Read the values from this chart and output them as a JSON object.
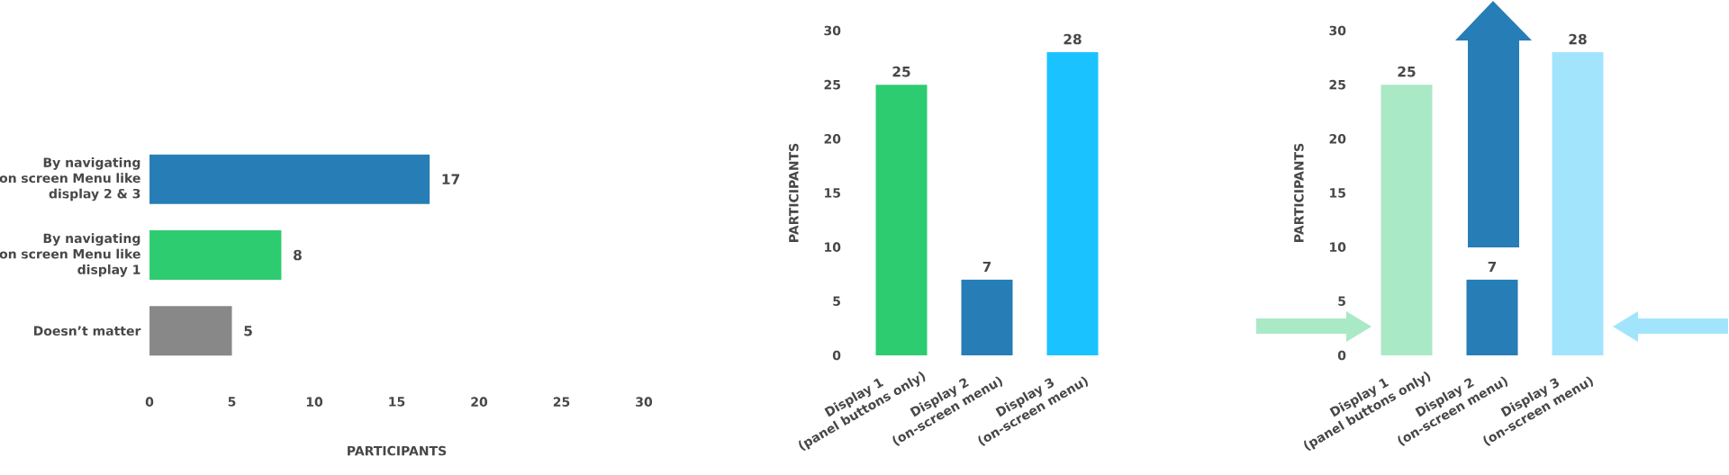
{
  "chart_data": [
    {
      "type": "bar",
      "orientation": "horizontal",
      "categories": [
        "By navigating on screen Menu like display 2 & 3",
        "By navigating on screen Menu like display 1",
        "Doesn’t matter"
      ],
      "values": [
        17,
        8,
        5
      ],
      "colors": [
        "#277db5",
        "#2ecc71",
        "#888888"
      ],
      "xlim": [
        0,
        30
      ],
      "xticks": [
        0,
        5,
        10,
        15,
        20,
        25,
        30
      ],
      "xlabel": "PARTICIPANTS",
      "data_labels": true
    },
    {
      "type": "bar",
      "categories": [
        "Display 1 (panel buttons only)",
        "Display 2 (on-screen menu)",
        "Display 3 (on-screen menu)"
      ],
      "values": [
        25,
        7,
        28
      ],
      "colors": [
        "#2ecc71",
        "#277db5",
        "#1ac3ff"
      ],
      "ylim": [
        0,
        30
      ],
      "yticks": [
        0,
        5,
        10,
        15,
        20,
        25,
        30
      ],
      "ylabel": "PARTICIPANTS",
      "data_labels": true
    },
    {
      "type": "bar",
      "categories": [
        "Display 1 (panel buttons only)",
        "Display 2 (on-screen menu)",
        "Display 3 (on-screen menu)"
      ],
      "values": [
        25,
        7,
        28
      ],
      "colors": [
        "#a9e9c6",
        "#277db5",
        "#a3e4fd"
      ],
      "ylim": [
        0,
        30
      ],
      "yticks": [
        0,
        5,
        10,
        15,
        20,
        25,
        30
      ],
      "ylabel": "PARTICIPANTS",
      "data_labels": true
    }
  ]
}
